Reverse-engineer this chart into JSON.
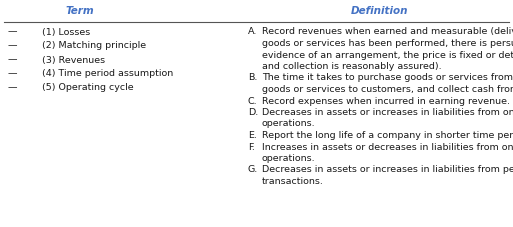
{
  "title_term": "Term",
  "title_def": "Definition",
  "header_color": "#4472c4",
  "terms": [
    "(1) Losses",
    "(2) Matching principle",
    "(3) Revenues",
    "(4) Time period assumption",
    "(5) Operating cycle"
  ],
  "def_blocks": [
    {
      "letter": "A.",
      "lines": [
        "Record revenues when earned and measurable (delivery of",
        "goods or services has been performed, there is persuasive",
        "evidence of an arrangement, the price is fixed or determinable,",
        "and collection is reasonably assured)."
      ]
    },
    {
      "letter": "B.",
      "lines": [
        "The time it takes to purchase goods or services from suppliers, sell",
        "goods or services to customers, and collect cash from customers."
      ]
    },
    {
      "letter": "C.",
      "lines": [
        "Record expenses when incurred in earning revenue."
      ]
    },
    {
      "letter": "D.",
      "lines": [
        "Decreases in assets or increases in liabilities from ongoing",
        "operations."
      ]
    },
    {
      "letter": "E.",
      "lines": [
        "Report the long life of a company in shorter time periods."
      ]
    },
    {
      "letter": "F.",
      "lines": [
        "Increases in assets or decreases in liabilities from ongoing",
        "operations."
      ]
    },
    {
      "letter": "G.",
      "lines": [
        "Decreases in assets or increases in liabilities from peripheral",
        "transactions."
      ]
    }
  ],
  "bg_color": "#ffffff",
  "text_color": "#1a1a1a",
  "line_color": "#555555",
  "font_size": 6.8,
  "header_font_size": 7.5
}
